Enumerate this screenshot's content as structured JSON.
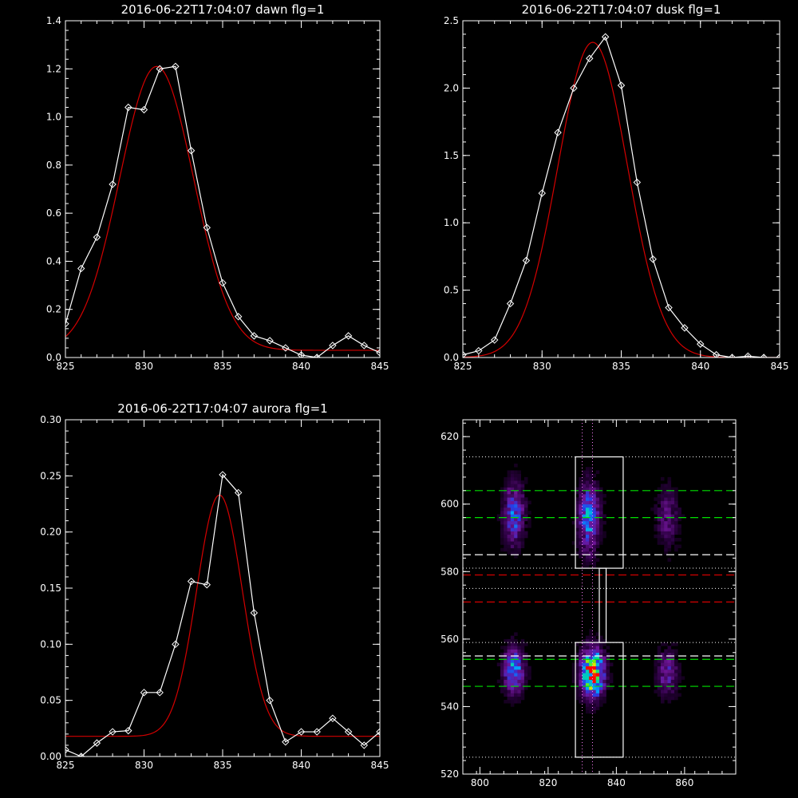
{
  "chart_data": [
    {
      "type": "line",
      "title": "2016-06-22T17:04:07 dawn flg=1",
      "xlim": [
        825,
        845
      ],
      "ylim": [
        0,
        1.4
      ],
      "xticks": [
        "825",
        "830",
        "835",
        "840",
        "845"
      ],
      "xtick_values": [
        825,
        830,
        835,
        840,
        845
      ],
      "yticks": [
        "0.0",
        "0.2",
        "0.4",
        "0.6",
        "0.8",
        "1.0",
        "1.2",
        "1.4"
      ],
      "ytick_values": [
        0,
        0.2,
        0.4,
        0.6,
        0.8,
        1.0,
        1.2,
        1.4
      ],
      "series": [
        {
          "color": "#ffffff",
          "marker": "diamond",
          "x": [
            825,
            826,
            827,
            828,
            829,
            830,
            831,
            832,
            833,
            834,
            835,
            836,
            837,
            838,
            839,
            840,
            841,
            842,
            843,
            844,
            845
          ],
          "y": [
            0.14,
            0.37,
            0.5,
            0.72,
            1.04,
            1.03,
            1.2,
            1.21,
            0.86,
            0.54,
            0.31,
            0.17,
            0.09,
            0.07,
            0.04,
            0.01,
            0.0,
            0.05,
            0.09,
            0.05,
            0.02
          ]
        },
        {
          "color": "#d40000",
          "marker": "none",
          "fit": {
            "amplitude": 1.18,
            "center": 830.8,
            "sigma": 2.35,
            "baseline": 0.03
          }
        }
      ]
    },
    {
      "type": "line",
      "title": "2016-06-22T17:04:07 dusk flg=1",
      "xlim": [
        825,
        845
      ],
      "ylim": [
        0,
        2.5
      ],
      "xticks": [
        "825",
        "830",
        "835",
        "840",
        "845"
      ],
      "xtick_values": [
        825,
        830,
        835,
        840,
        845
      ],
      "yticks": [
        "0.0",
        "0.5",
        "1.0",
        "1.5",
        "2.0",
        "2.5"
      ],
      "ytick_values": [
        0,
        0.5,
        1.0,
        1.5,
        2.0,
        2.5
      ],
      "series": [
        {
          "color": "#ffffff",
          "marker": "diamond",
          "x": [
            825,
            826,
            827,
            828,
            829,
            830,
            831,
            832,
            833,
            834,
            835,
            836,
            837,
            838,
            839,
            840,
            841,
            842,
            843,
            844,
            845
          ],
          "y": [
            0.02,
            0.05,
            0.13,
            0.4,
            0.72,
            1.22,
            1.67,
            2.0,
            2.22,
            2.38,
            2.02,
            1.3,
            0.73,
            0.37,
            0.22,
            0.1,
            0.02,
            0.0,
            0.01,
            0.0,
            0.0
          ]
        },
        {
          "color": "#d40000",
          "marker": "none",
          "fit": {
            "amplitude": 2.34,
            "center": 833.2,
            "sigma": 2.2,
            "baseline": 0.0
          }
        }
      ]
    },
    {
      "type": "line",
      "title": "2016-06-22T17:04:07 aurora flg=1",
      "xlim": [
        825,
        845
      ],
      "ylim": [
        0,
        0.3
      ],
      "xticks": [
        "825",
        "830",
        "835",
        "840",
        "845"
      ],
      "xtick_values": [
        825,
        830,
        835,
        840,
        845
      ],
      "yticks": [
        "0.00",
        "0.05",
        "0.10",
        "0.15",
        "0.20",
        "0.25",
        "0.30"
      ],
      "ytick_values": [
        0,
        0.05,
        0.1,
        0.15,
        0.2,
        0.25,
        0.3
      ],
      "series": [
        {
          "color": "#ffffff",
          "marker": "diamond",
          "x": [
            825,
            826,
            827,
            828,
            829,
            830,
            831,
            832,
            833,
            834,
            835,
            836,
            837,
            838,
            839,
            840,
            841,
            842,
            843,
            844,
            845
          ],
          "y": [
            0.006,
            0.0,
            0.012,
            0.022,
            0.023,
            0.057,
            0.057,
            0.1,
            0.156,
            0.153,
            0.251,
            0.235,
            0.128,
            0.05,
            0.013,
            0.022,
            0.022,
            0.034,
            0.022,
            0.01,
            0.022
          ]
        },
        {
          "color": "#d40000",
          "marker": "none",
          "fit": {
            "amplitude": 0.215,
            "center": 834.8,
            "sigma": 1.45,
            "baseline": 0.018
          }
        }
      ]
    },
    {
      "type": "heatmap",
      "title": "",
      "xlim": [
        795,
        875
      ],
      "ylim": [
        520,
        625
      ],
      "xticks": [
        "800",
        "820",
        "840",
        "860"
      ],
      "xtick_values": [
        800,
        820,
        840,
        860
      ],
      "yticks": [
        "520",
        "540",
        "560",
        "580",
        "600",
        "620"
      ],
      "ytick_values": [
        520,
        540,
        560,
        580,
        600,
        620
      ],
      "blobs": [
        {
          "x": 810,
          "y": 597,
          "sx": 2.0,
          "sy": 6.0,
          "peak": 0.42
        },
        {
          "x": 832,
          "y": 596,
          "sx": 2.0,
          "sy": 6.5,
          "peak": 0.5
        },
        {
          "x": 855,
          "y": 596,
          "sx": 2.2,
          "sy": 6.0,
          "peak": 0.2
        },
        {
          "x": 810,
          "y": 551,
          "sx": 2.0,
          "sy": 4.5,
          "peak": 0.5
        },
        {
          "x": 833,
          "y": 550,
          "sx": 2.2,
          "sy": 4.5,
          "peak": 1.0
        },
        {
          "x": 855,
          "y": 550,
          "sx": 2.0,
          "sy": 4.5,
          "peak": 0.28
        }
      ],
      "boxes": [
        {
          "x0": 828,
          "x1": 842,
          "y0": 581,
          "y1": 614,
          "color": "#ffffff"
        },
        {
          "x0": 835,
          "x1": 837,
          "y0": 559,
          "y1": 581,
          "color": "#ffffff"
        },
        {
          "x0": 828,
          "x1": 842,
          "y0": 525,
          "y1": 559,
          "color": "#ffffff"
        }
      ],
      "dotted_h": [
        614,
        581,
        575,
        559,
        525
      ],
      "dotted_v": [
        830,
        833
      ],
      "dashed_h": [
        {
          "y": 604,
          "color": "#00e000"
        },
        {
          "y": 596,
          "color": "#00e000"
        },
        {
          "y": 585,
          "color": "#ffffff"
        },
        {
          "y": 579,
          "color": "#d40000"
        },
        {
          "y": 571,
          "color": "#d40000"
        },
        {
          "y": 555,
          "color": "#ffffff"
        },
        {
          "y": 554,
          "color": "#00e000"
        },
        {
          "y": 546,
          "color": "#00e000"
        }
      ]
    }
  ]
}
